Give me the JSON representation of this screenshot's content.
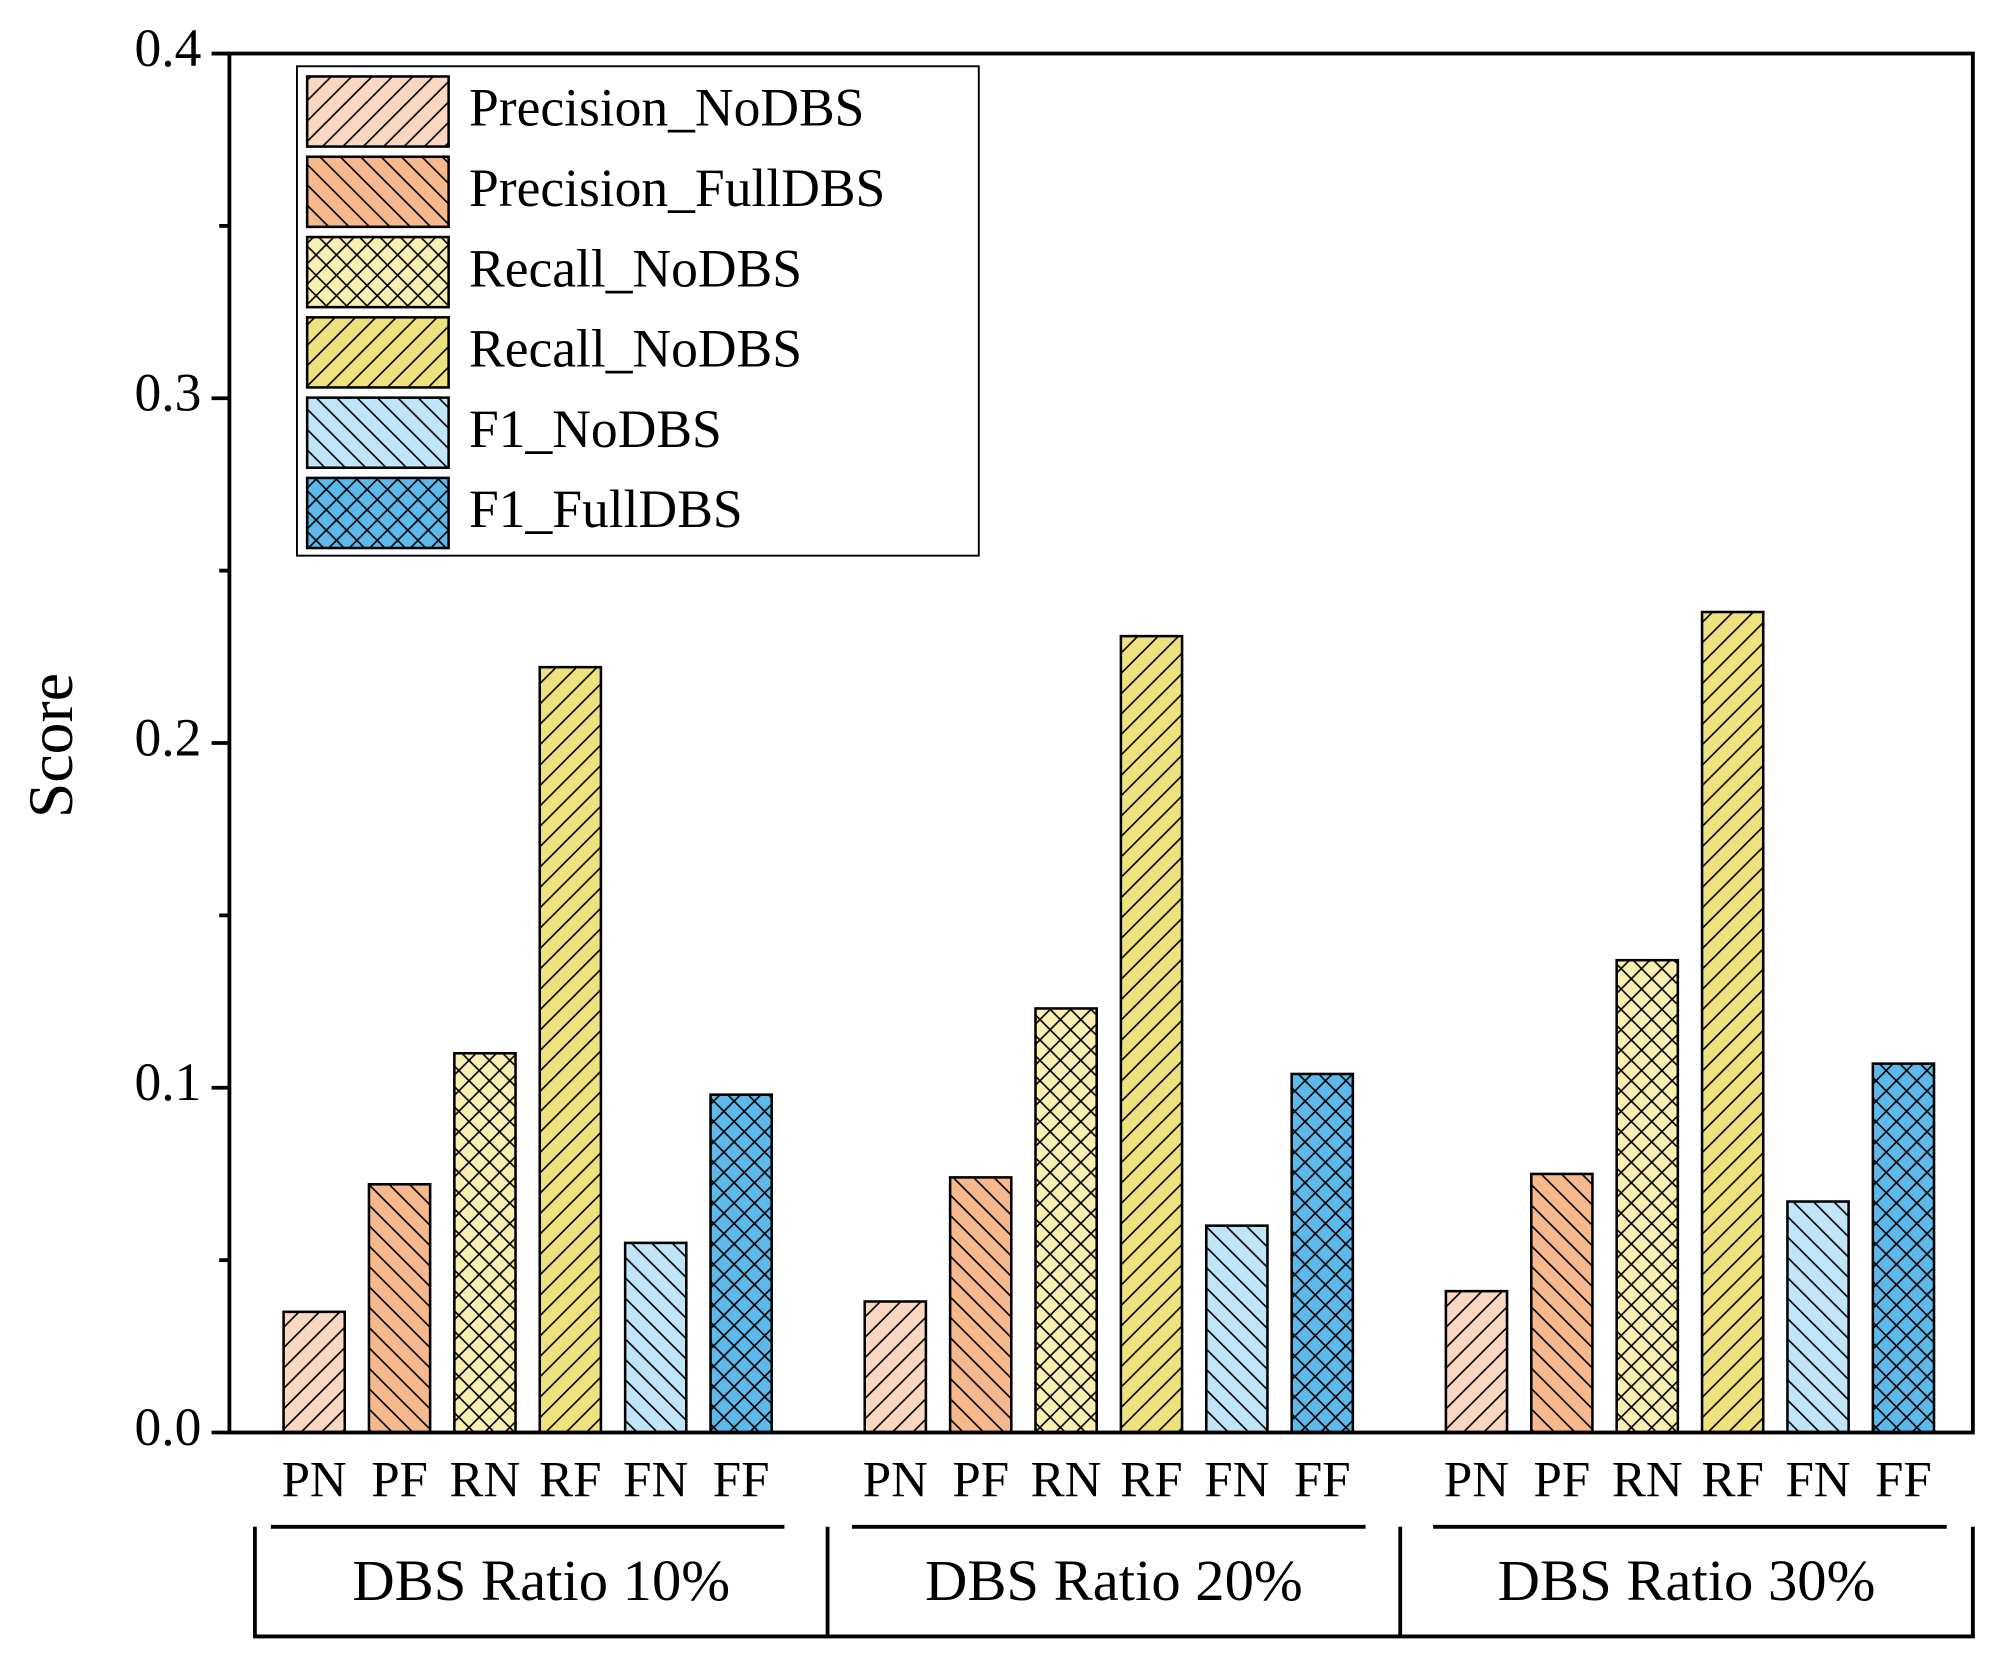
{
  "chart_data": {
    "type": "bar",
    "y_label": "Score",
    "categories": [
      "DBS Ratio 10%",
      "DBS Ratio 20%",
      "DBS Ratio 30%"
    ],
    "bar_labels": [
      "PN",
      "PF",
      "RN",
      "RF",
      "FN",
      "FF"
    ],
    "series": [
      {
        "name": "Precision_NoDBS",
        "color": "#fad7c0",
        "hatch": "/",
        "values": [
          0.035,
          0.038,
          0.041
        ]
      },
      {
        "name": "Precision_FullDBS",
        "color": "#f6b98e",
        "hatch": "\\",
        "values": [
          0.072,
          0.074,
          0.075
        ]
      },
      {
        "name": "Recall_NoDBS",
        "color": "#faefb3",
        "hatch": "x",
        "values": [
          0.11,
          0.123,
          0.137
        ]
      },
      {
        "name": "Recall_NoDBS",
        "color": "#eee27e",
        "hatch": "/",
        "values": [
          0.222,
          0.231,
          0.238
        ]
      },
      {
        "name": "F1_NoDBS",
        "color": "#c0e4f8",
        "hatch": "\\",
        "values": [
          0.055,
          0.06,
          0.067
        ]
      },
      {
        "name": "F1_FullDBS",
        "color": "#5cb9ea",
        "hatch": "x",
        "values": [
          0.098,
          0.104,
          0.107
        ]
      }
    ],
    "ylim": [
      0,
      0.4
    ],
    "yticks": [
      {
        "value": 0,
        "label": "0.0"
      },
      0.1,
      0.2,
      0.3,
      0.4
    ],
    "yticks_minor": [
      0.05,
      0.15,
      0.25,
      0.35
    ],
    "legend": "upper left"
  }
}
